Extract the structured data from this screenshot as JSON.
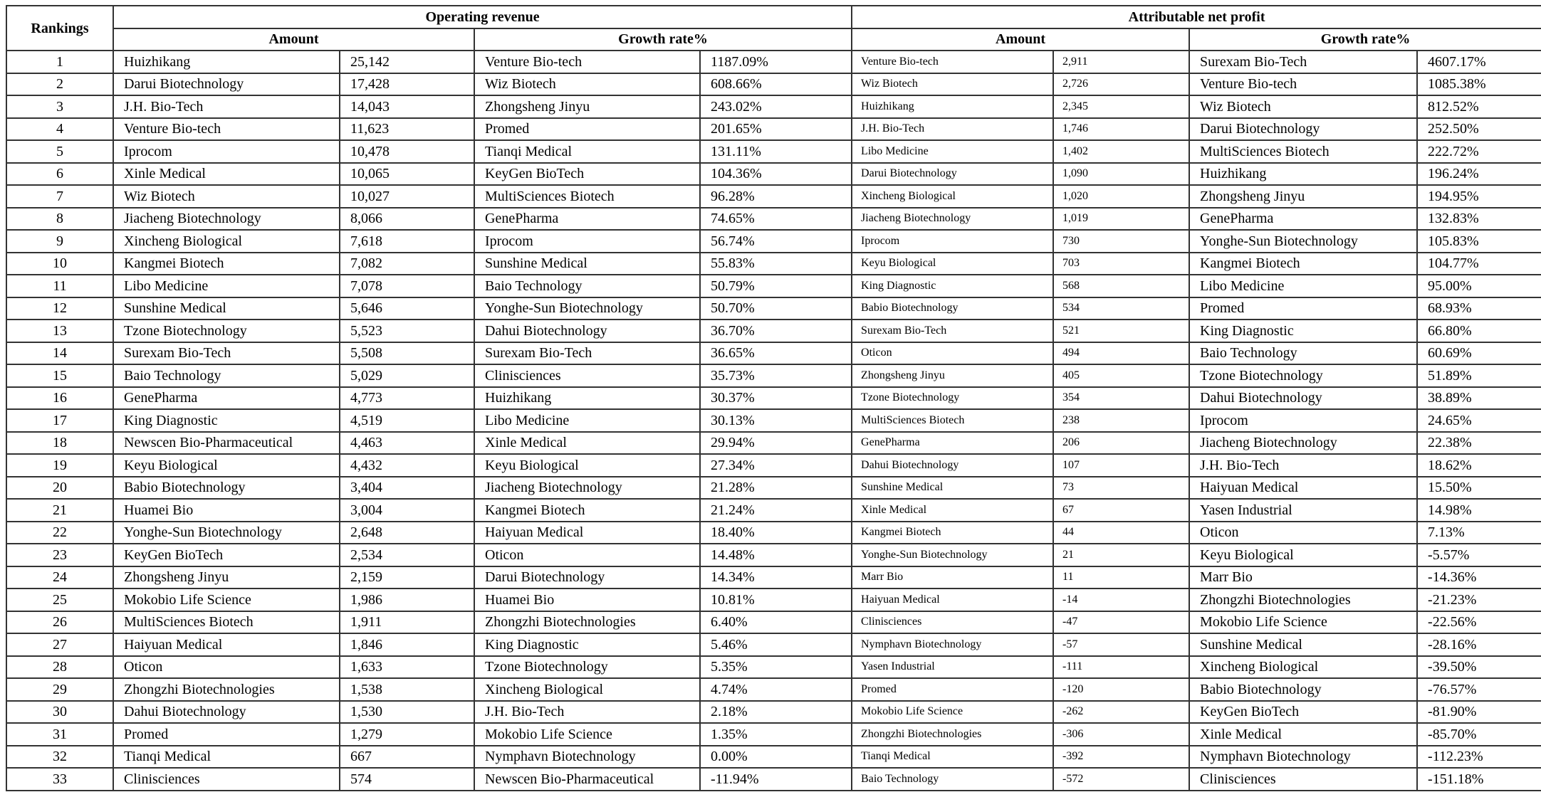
{
  "headers": {
    "rankings": "Rankings",
    "operating_revenue": "Operating revenue",
    "attributable_net_profit": "Attributable net profit",
    "amount": "Amount",
    "growth_rate": "Growth rate%"
  },
  "columns": [
    "rank",
    "revenue_amount_company",
    "revenue_amount",
    "revenue_growth_company",
    "revenue_growth",
    "profit_amount_company",
    "profit_amount",
    "profit_growth_company",
    "profit_growth"
  ],
  "rows": [
    [
      "1",
      "Huizhikang",
      "25,142",
      "Venture Bio-tech",
      "1187.09%",
      "Venture Bio-tech",
      "2,911",
      "Surexam Bio-Tech",
      "4607.17%"
    ],
    [
      "2",
      "Darui Biotechnology",
      "17,428",
      "Wiz Biotech",
      "608.66%",
      "Wiz Biotech",
      "2,726",
      "Venture Bio-tech",
      "1085.38%"
    ],
    [
      "3",
      "J.H. Bio-Tech",
      "14,043",
      "Zhongsheng Jinyu",
      "243.02%",
      "Huizhikang",
      "2,345",
      "Wiz Biotech",
      "812.52%"
    ],
    [
      "4",
      "Venture Bio-tech",
      "11,623",
      "Promed",
      "201.65%",
      "J.H. Bio-Tech",
      "1,746",
      "Darui Biotechnology",
      "252.50%"
    ],
    [
      "5",
      "Iprocom",
      "10,478",
      "Tianqi Medical",
      "131.11%",
      "Libo Medicine",
      "1,402",
      "MultiSciences Biotech",
      "222.72%"
    ],
    [
      "6",
      "Xinle Medical",
      "10,065",
      "KeyGen BioTech",
      "104.36%",
      "Darui Biotechnology",
      "1,090",
      "Huizhikang",
      "196.24%"
    ],
    [
      "7",
      "Wiz Biotech",
      "10,027",
      "MultiSciences Biotech",
      "96.28%",
      "Xincheng Biological",
      "1,020",
      "Zhongsheng Jinyu",
      "194.95%"
    ],
    [
      "8",
      "Jiacheng Biotechnology",
      "8,066",
      "GenePharma",
      "74.65%",
      "Jiacheng Biotechnology",
      "1,019",
      "GenePharma",
      "132.83%"
    ],
    [
      "9",
      "Xincheng Biological",
      "7,618",
      "Iprocom",
      "56.74%",
      "Iprocom",
      "730",
      "Yonghe-Sun Biotechnology",
      "105.83%"
    ],
    [
      "10",
      "Kangmei Biotech",
      "7,082",
      "Sunshine Medical",
      "55.83%",
      "Keyu Biological",
      "703",
      "Kangmei Biotech",
      "104.77%"
    ],
    [
      "11",
      "Libo Medicine",
      "7,078",
      "Baio Technology",
      "50.79%",
      "King Diagnostic",
      "568",
      "Libo Medicine",
      "95.00%"
    ],
    [
      "12",
      "Sunshine Medical",
      "5,646",
      "Yonghe-Sun Biotechnology",
      "50.70%",
      "Babio Biotechnology",
      "534",
      "Promed",
      "68.93%"
    ],
    [
      "13",
      "Tzone Biotechnology",
      "5,523",
      "Dahui Biotechnology",
      "36.70%",
      "Surexam Bio-Tech",
      "521",
      "King Diagnostic",
      "66.80%"
    ],
    [
      "14",
      "Surexam Bio-Tech",
      "5,508",
      "Surexam Bio-Tech",
      "36.65%",
      "Oticon",
      "494",
      "Baio Technology",
      "60.69%"
    ],
    [
      "15",
      "Baio Technology",
      "5,029",
      "Clinisciences",
      "35.73%",
      "Zhongsheng Jinyu",
      "405",
      "Tzone Biotechnology",
      "51.89%"
    ],
    [
      "16",
      "GenePharma",
      "4,773",
      "Huizhikang",
      "30.37%",
      "Tzone Biotechnology",
      "354",
      "Dahui Biotechnology",
      "38.89%"
    ],
    [
      "17",
      "King Diagnostic",
      "4,519",
      "Libo Medicine",
      "30.13%",
      "MultiSciences Biotech",
      "238",
      "Iprocom",
      "24.65%"
    ],
    [
      "18",
      "Newscen Bio-Pharmaceutical",
      "4,463",
      "Xinle Medical",
      "29.94%",
      "GenePharma",
      "206",
      "Jiacheng Biotechnology",
      "22.38%"
    ],
    [
      "19",
      "Keyu Biological",
      "4,432",
      "Keyu Biological",
      "27.34%",
      "Dahui Biotechnology",
      "107",
      "J.H. Bio-Tech",
      "18.62%"
    ],
    [
      "20",
      "Babio Biotechnology",
      "3,404",
      "Jiacheng Biotechnology",
      "21.28%",
      "Sunshine Medical",
      "73",
      "Haiyuan Medical",
      "15.50%"
    ],
    [
      "21",
      "Huamei Bio",
      "3,004",
      "Kangmei Biotech",
      "21.24%",
      "Xinle Medical",
      "67",
      "Yasen Industrial",
      "14.98%"
    ],
    [
      "22",
      "Yonghe-Sun Biotechnology",
      "2,648",
      "Haiyuan Medical",
      "18.40%",
      "Kangmei Biotech",
      "44",
      "Oticon",
      "7.13%"
    ],
    [
      "23",
      "KeyGen BioTech",
      "2,534",
      "Oticon",
      "14.48%",
      "Yonghe-Sun Biotechnology",
      "21",
      "Keyu Biological",
      "-5.57%"
    ],
    [
      "24",
      "Zhongsheng Jinyu",
      "2,159",
      "Darui Biotechnology",
      "14.34%",
      "Marr Bio",
      "11",
      "Marr Bio",
      "-14.36%"
    ],
    [
      "25",
      "Mokobio Life Science",
      "1,986",
      "Huamei Bio",
      "10.81%",
      "Haiyuan Medical",
      "-14",
      "Zhongzhi Biotechnologies",
      "-21.23%"
    ],
    [
      "26",
      "MultiSciences Biotech",
      "1,911",
      "Zhongzhi Biotechnologies",
      "6.40%",
      "Clinisciences",
      "-47",
      "Mokobio Life Science",
      "-22.56%"
    ],
    [
      "27",
      "Haiyuan Medical",
      "1,846",
      "King Diagnostic",
      "5.46%",
      "Nymphavn Biotechnology",
      "-57",
      "Sunshine Medical",
      "-28.16%"
    ],
    [
      "28",
      "Oticon",
      "1,633",
      "Tzone Biotechnology",
      "5.35%",
      "Yasen Industrial",
      "-111",
      "Xincheng Biological",
      "-39.50%"
    ],
    [
      "29",
      "Zhongzhi Biotechnologies",
      "1,538",
      "Xincheng Biological",
      "4.74%",
      "Promed",
      "-120",
      "Babio Biotechnology",
      "-76.57%"
    ],
    [
      "30",
      "Dahui Biotechnology",
      "1,530",
      "J.H. Bio-Tech",
      "2.18%",
      "Mokobio Life Science",
      "-262",
      "KeyGen BioTech",
      "-81.90%"
    ],
    [
      "31",
      "Promed",
      "1,279",
      "Mokobio Life Science",
      "1.35%",
      "Zhongzhi Biotechnologies",
      "-306",
      "Xinle Medical",
      "-85.70%"
    ],
    [
      "32",
      "Tianqi Medical",
      "667",
      "Nymphavn Biotechnology",
      "0.00%",
      "Tianqi Medical",
      "-392",
      "Nymphavn Biotechnology",
      "-112.23%"
    ],
    [
      "33",
      "Clinisciences",
      "574",
      "Newscen Bio-Pharmaceutical",
      "-11.94%",
      "Baio Technology",
      "-572",
      "Clinisciences",
      "-151.18%"
    ]
  ]
}
